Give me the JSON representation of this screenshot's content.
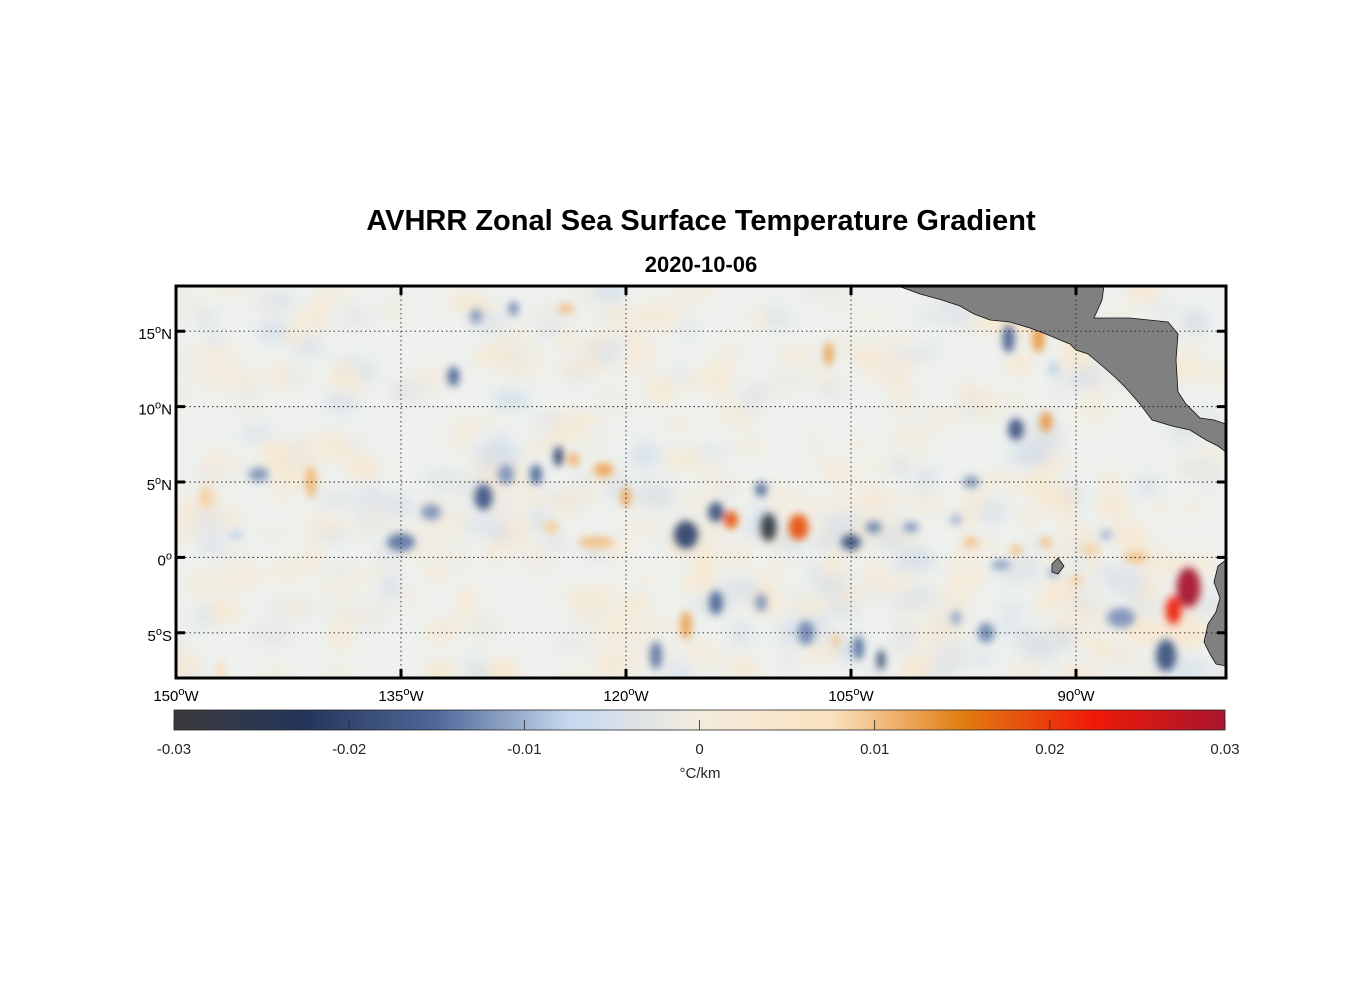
{
  "title": "AVHRR Zonal Sea Surface Temperature Gradient",
  "subtitle": "2020-10-06",
  "map": {
    "lon_range": [
      -150,
      -80
    ],
    "lat_range": [
      -8,
      18
    ],
    "lon_ticks": [
      {
        "value": -150,
        "deg": "150",
        "hemi": "W"
      },
      {
        "value": -135,
        "deg": "135",
        "hemi": "W"
      },
      {
        "value": -120,
        "deg": "120",
        "hemi": "W"
      },
      {
        "value": -105,
        "deg": "105",
        "hemi": "W"
      },
      {
        "value": -90,
        "deg": "90",
        "hemi": "W"
      }
    ],
    "lat_ticks": [
      {
        "value": 15,
        "deg": "15",
        "hemi": "N"
      },
      {
        "value": 10,
        "deg": "10",
        "hemi": "N"
      },
      {
        "value": 5,
        "deg": "5",
        "hemi": "N"
      },
      {
        "value": 0,
        "deg": "0",
        "hemi": ""
      },
      {
        "value": -5,
        "deg": "5",
        "hemi": "S"
      }
    ],
    "grid": true,
    "land_color": "#808080",
    "ocean_color": "#eef1ee"
  },
  "colorbar": {
    "range": [
      -0.03,
      0.03
    ],
    "ticks": [
      "-0.03",
      "-0.02",
      "-0.01",
      "0",
      "0.01",
      "0.02",
      "0.03"
    ],
    "tick_values": [
      -0.03,
      -0.02,
      -0.01,
      0,
      0.01,
      0.02,
      0.03
    ],
    "label": "°C/km",
    "stops": [
      "#3a3a3a",
      "#24355c",
      "#4f6898",
      "#c6d8ee",
      "#f3ecdf",
      "#fbe2c0",
      "#e17d12",
      "#ef1a08",
      "#a8152e"
    ]
  }
}
